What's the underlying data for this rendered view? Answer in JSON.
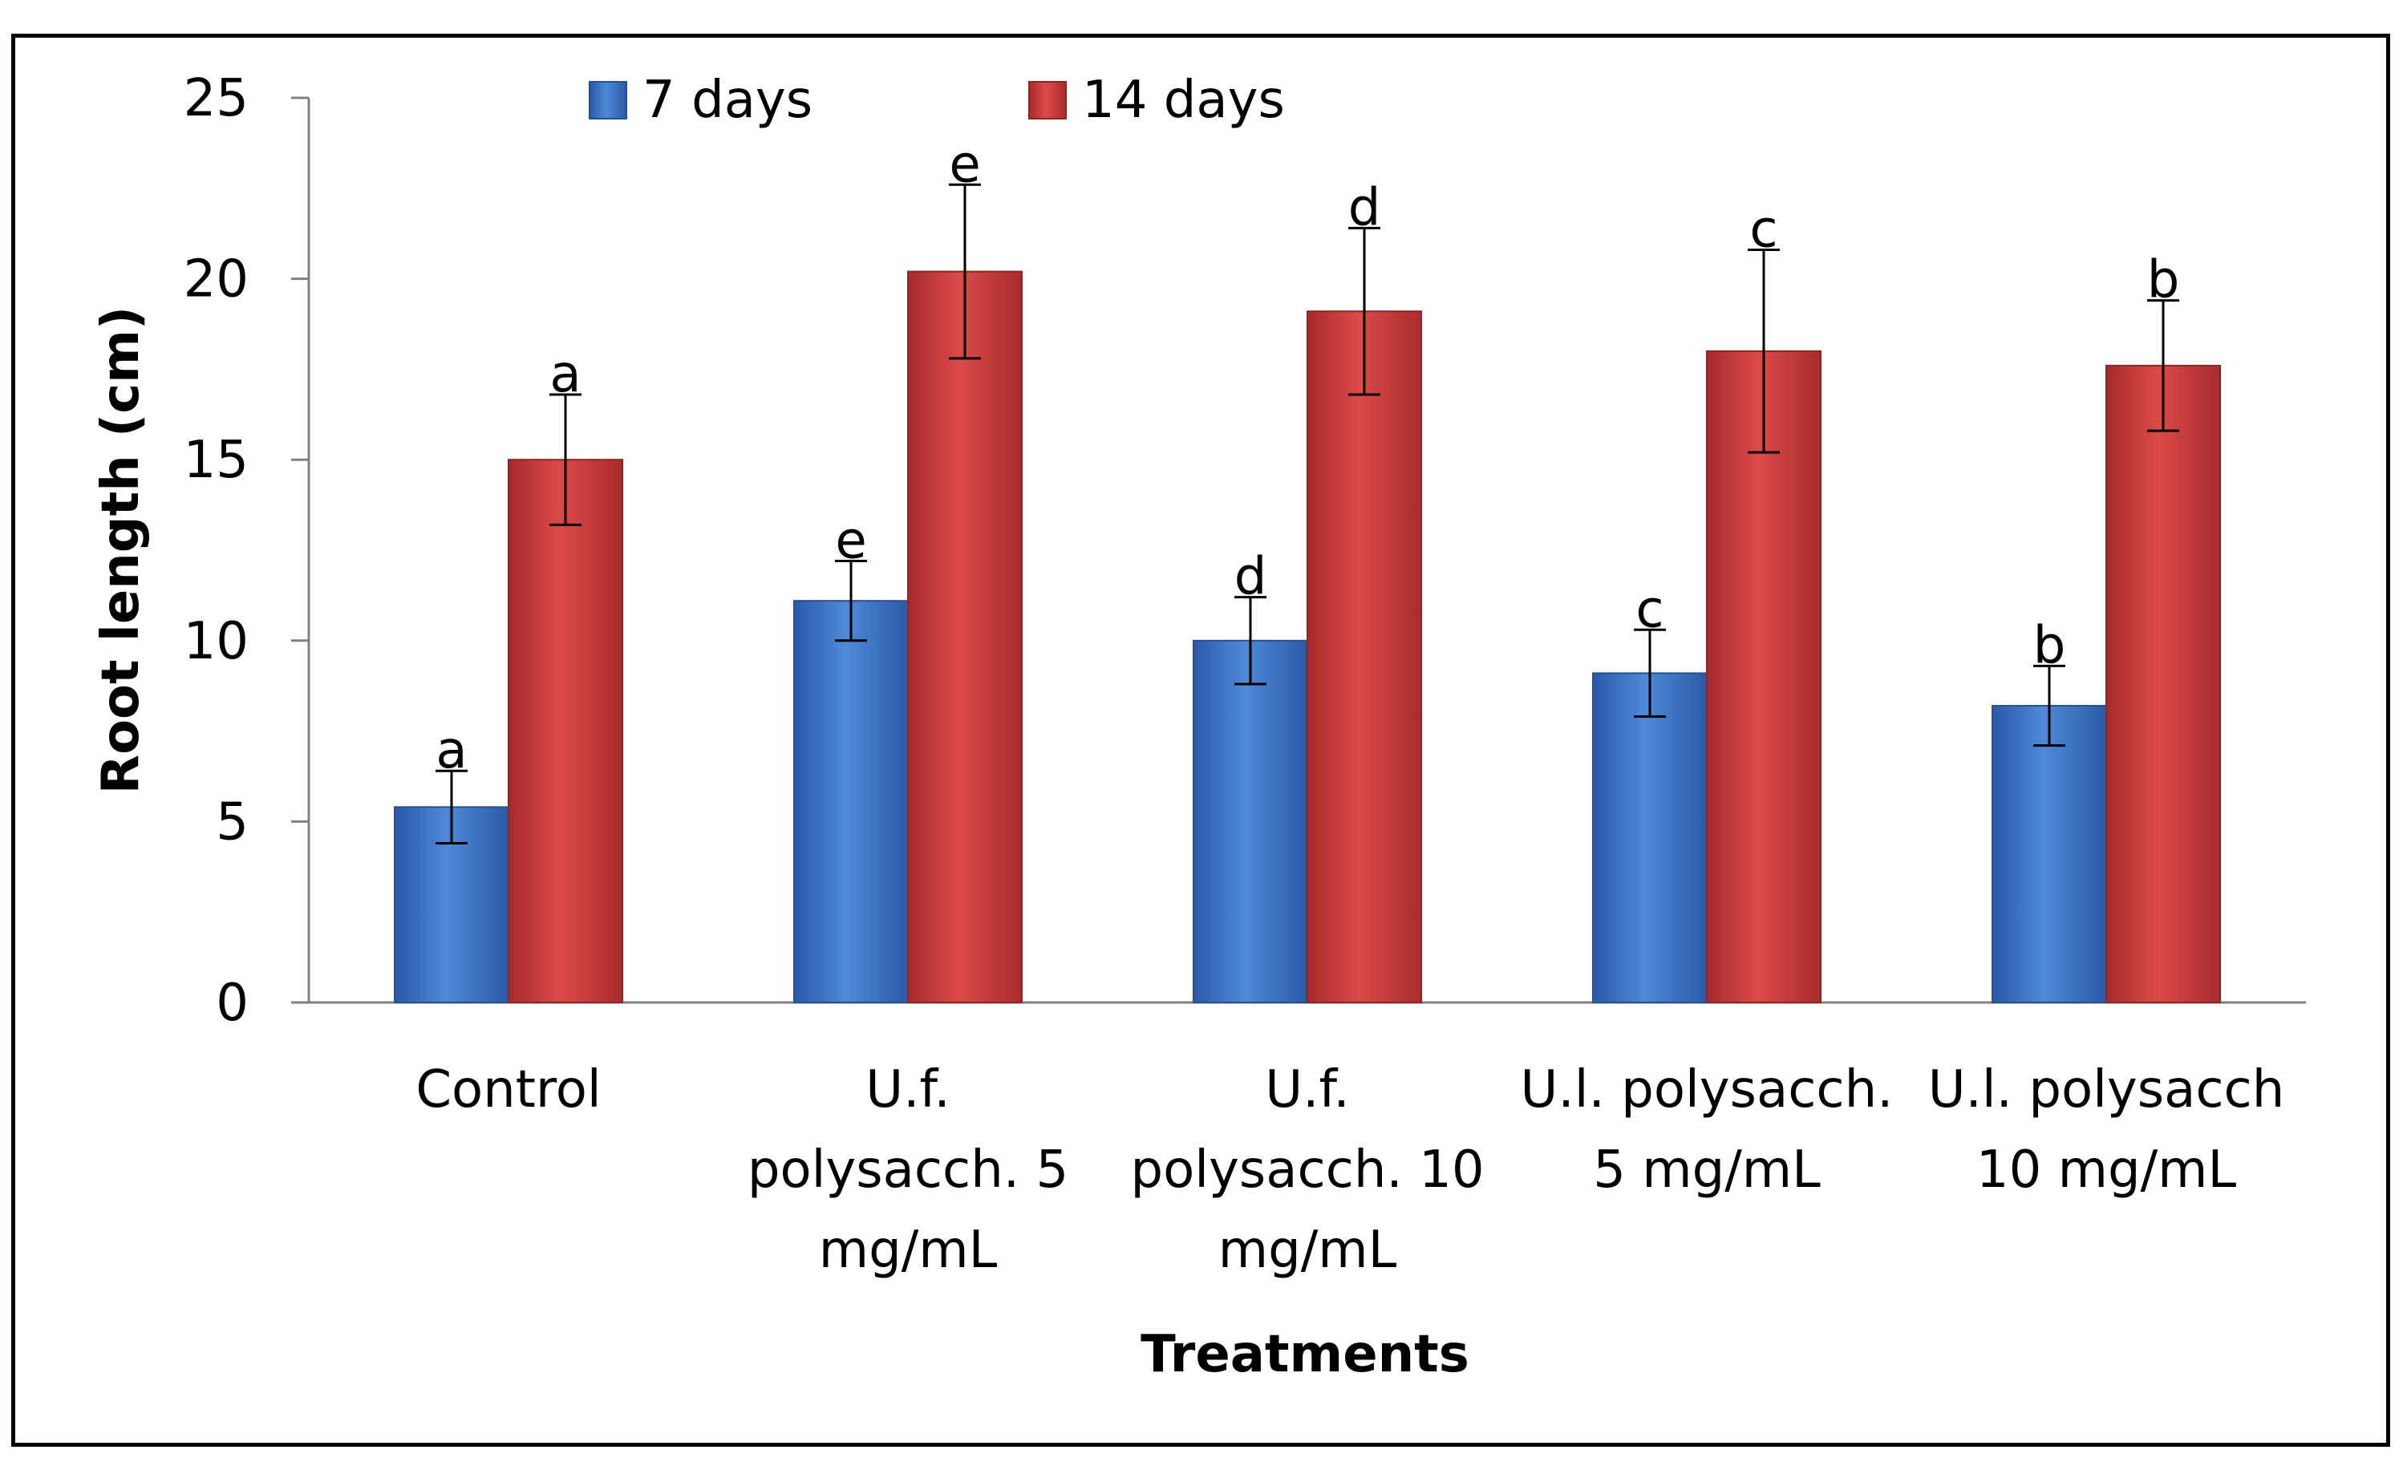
{
  "chart_data": {
    "type": "bar",
    "title": "",
    "xlabel": "Treatments",
    "ylabel": "Root length (cm)",
    "ylim": [
      0,
      25
    ],
    "yticks": [
      0,
      5,
      10,
      15,
      20,
      25
    ],
    "grid": false,
    "legend_position": "top-center",
    "categories": [
      [
        "Control"
      ],
      [
        "U.f.",
        "polysacch. 5",
        "mg/mL"
      ],
      [
        "U.f.",
        "polysacch. 10",
        "mg/mL"
      ],
      [
        "U.l. polysacch.",
        "5 mg/mL"
      ],
      [
        "U.l. polysacch",
        "10  mg/mL"
      ]
    ],
    "series": [
      {
        "name": "7 days",
        "color": "#3a6fc4",
        "values": [
          5.4,
          11.1,
          10.0,
          9.1,
          8.2
        ],
        "errors": [
          1.0,
          1.1,
          1.2,
          1.2,
          1.1
        ],
        "letters": [
          "a",
          "e",
          "d",
          "c",
          "b"
        ]
      },
      {
        "name": "14 days",
        "color": "#c9393a",
        "values": [
          15.0,
          20.2,
          19.1,
          18.0,
          17.6
        ],
        "errors": [
          1.8,
          2.4,
          2.3,
          2.8,
          1.8
        ],
        "letters": [
          "a",
          "e",
          "d",
          "c",
          "b"
        ]
      }
    ]
  }
}
